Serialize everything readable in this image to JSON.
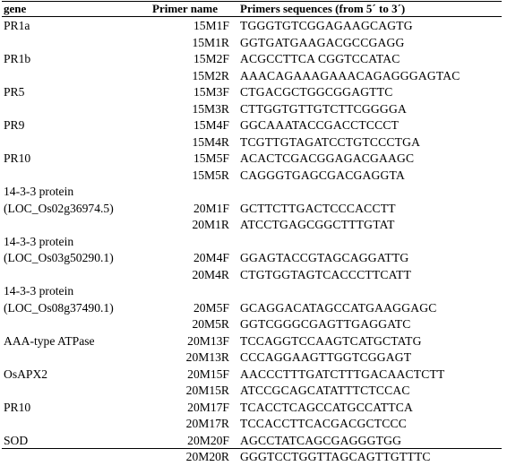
{
  "headers": {
    "gene": "gene",
    "primer": "Primer name",
    "sequence": "Primers sequences (from 5´ to 3´)"
  },
  "rows": [
    {
      "gene": "PR1a",
      "primer": "15M1F",
      "seq": "TGGGTGTCGGAGAAGCAGTG"
    },
    {
      "gene": "",
      "primer": "15M1R",
      "seq": "GGTGATGAAGACGCCGAGG"
    },
    {
      "gene": "PR1b",
      "primer": "15M2F",
      "seq": "ACGCCTTCA CGGTCCATAC"
    },
    {
      "gene": "",
      "primer": "15M2R",
      "seq": "AAACAGAAAGAAACAGAGGGAGTAC"
    },
    {
      "gene": "PR5",
      "primer": "15M3F",
      "seq": "CTGACGCTGGCGGAGTTC"
    },
    {
      "gene": "",
      "primer": "15M3R",
      "seq": "CTTGGTGTTGTCTTCGGGGA"
    },
    {
      "gene": "PR9",
      "primer": "15M4F",
      "seq": "GGCAAATACCGACCTCCCT"
    },
    {
      "gene": "",
      "primer": "15M4R",
      "seq": "TCGTTGTAGATCCTGTCCCTGA"
    },
    {
      "gene": "PR10",
      "primer": "15M5F",
      "seq": "ACACTCGACGGAGACGAAGC"
    },
    {
      "gene": "",
      "primer": "15M5R",
      "seq": "CAGGGTGAGCGACGAGGTA"
    },
    {
      "gene": "14-3-3 protein",
      "primer": "",
      "seq": ""
    },
    {
      "gene": "(LOC_Os02g36974.5)",
      "primer": "20M1F",
      "seq": "GCTTCTTGACTCCCACCTT"
    },
    {
      "gene": "",
      "primer": "20M1R",
      "seq": "ATCCTGAGCGGCTTTGTAT"
    },
    {
      "gene": "14-3-3 protein",
      "primer": "",
      "seq": ""
    },
    {
      "gene": "(LOC_Os03g50290.1)",
      "primer": "20M4F",
      "seq": "GGAGTACCGTAGCAGGATTG"
    },
    {
      "gene": "",
      "primer": "20M4R",
      "seq": "CTGTGGTAGTCACCCTTCATT"
    },
    {
      "gene": "14-3-3 protein",
      "primer": "",
      "seq": ""
    },
    {
      "gene": "(LOC_Os08g37490.1)",
      "primer": "20M5F",
      "seq": "GCAGGACATAGCCATGAAGGAGC"
    },
    {
      "gene": "",
      "primer": "20M5R",
      "seq": "GGTCGGGCGAGTTGAGGATC"
    },
    {
      "gene": "AAA-type ATPase",
      "primer": "20M13F",
      "seq": "TCCAGGTCCAAGTCATGCTATG"
    },
    {
      "gene": "",
      "primer": "20M13R",
      "seq": "CCCAGGAAGTTGGTCGGAGT"
    },
    {
      "gene": "OsAPX2",
      "primer": "20M15F",
      "seq": "AACCCTTTGATCTTTGACAACTCTT"
    },
    {
      "gene": "",
      "primer": "20M15R",
      "seq": "ATCCGCAGCATATTTCTCCAC"
    },
    {
      "gene": "PR10",
      "primer": "20M17F",
      "seq": "TCACCTCAGCCATGCCATTCA"
    },
    {
      "gene": "",
      "primer": "20M17R",
      "seq": "TCCACCTTCACGACGCTCCC"
    },
    {
      "gene": "SOD",
      "primer": "20M20F",
      "seq": "AGCCTATCAGCGAGGGTGG"
    },
    {
      "gene": "",
      "primer": "20M20R",
      "seq": "GGGTCCTGGTTAGCAGTTGTTTC"
    }
  ]
}
